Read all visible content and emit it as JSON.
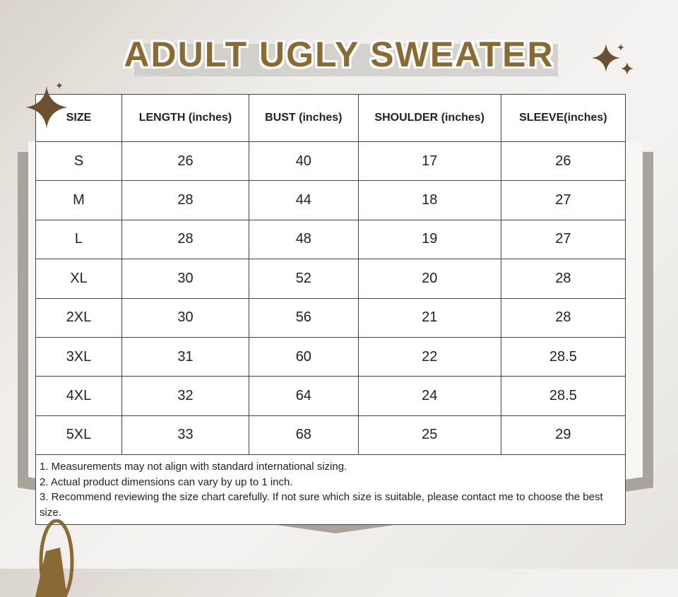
{
  "title": "ADULT UGLY SWEATER",
  "columns": [
    "SIZE",
    "LENGTH (inches)",
    "BUST (inches)",
    "SHOULDER (inches)",
    "SLEEVE(inches)"
  ],
  "rows": [
    [
      "S",
      "26",
      "40",
      "17",
      "26"
    ],
    [
      "M",
      "28",
      "44",
      "18",
      "27"
    ],
    [
      "L",
      "28",
      "48",
      "19",
      "27"
    ],
    [
      "XL",
      "30",
      "52",
      "20",
      "28"
    ],
    [
      "2XL",
      "30",
      "56",
      "21",
      "28"
    ],
    [
      "3XL",
      "31",
      "60",
      "22",
      "28.5"
    ],
    [
      "4XL",
      "32",
      "64",
      "24",
      "28.5"
    ],
    [
      "5XL",
      "33",
      "68",
      "25",
      "29"
    ]
  ],
  "notes": [
    "1. Measurements may not align with standard international sizing.",
    "2. Actual product dimensions can vary by up to 1 inch.",
    "3. Recommend reviewing the size chart carefully. If not sure which size is suitable, please contact me to choose the best size."
  ],
  "colors": {
    "accent": "#8a6a32",
    "sparkle": "#6b5132"
  },
  "icons": [
    "sparkle-icon",
    "bell-icon"
  ]
}
